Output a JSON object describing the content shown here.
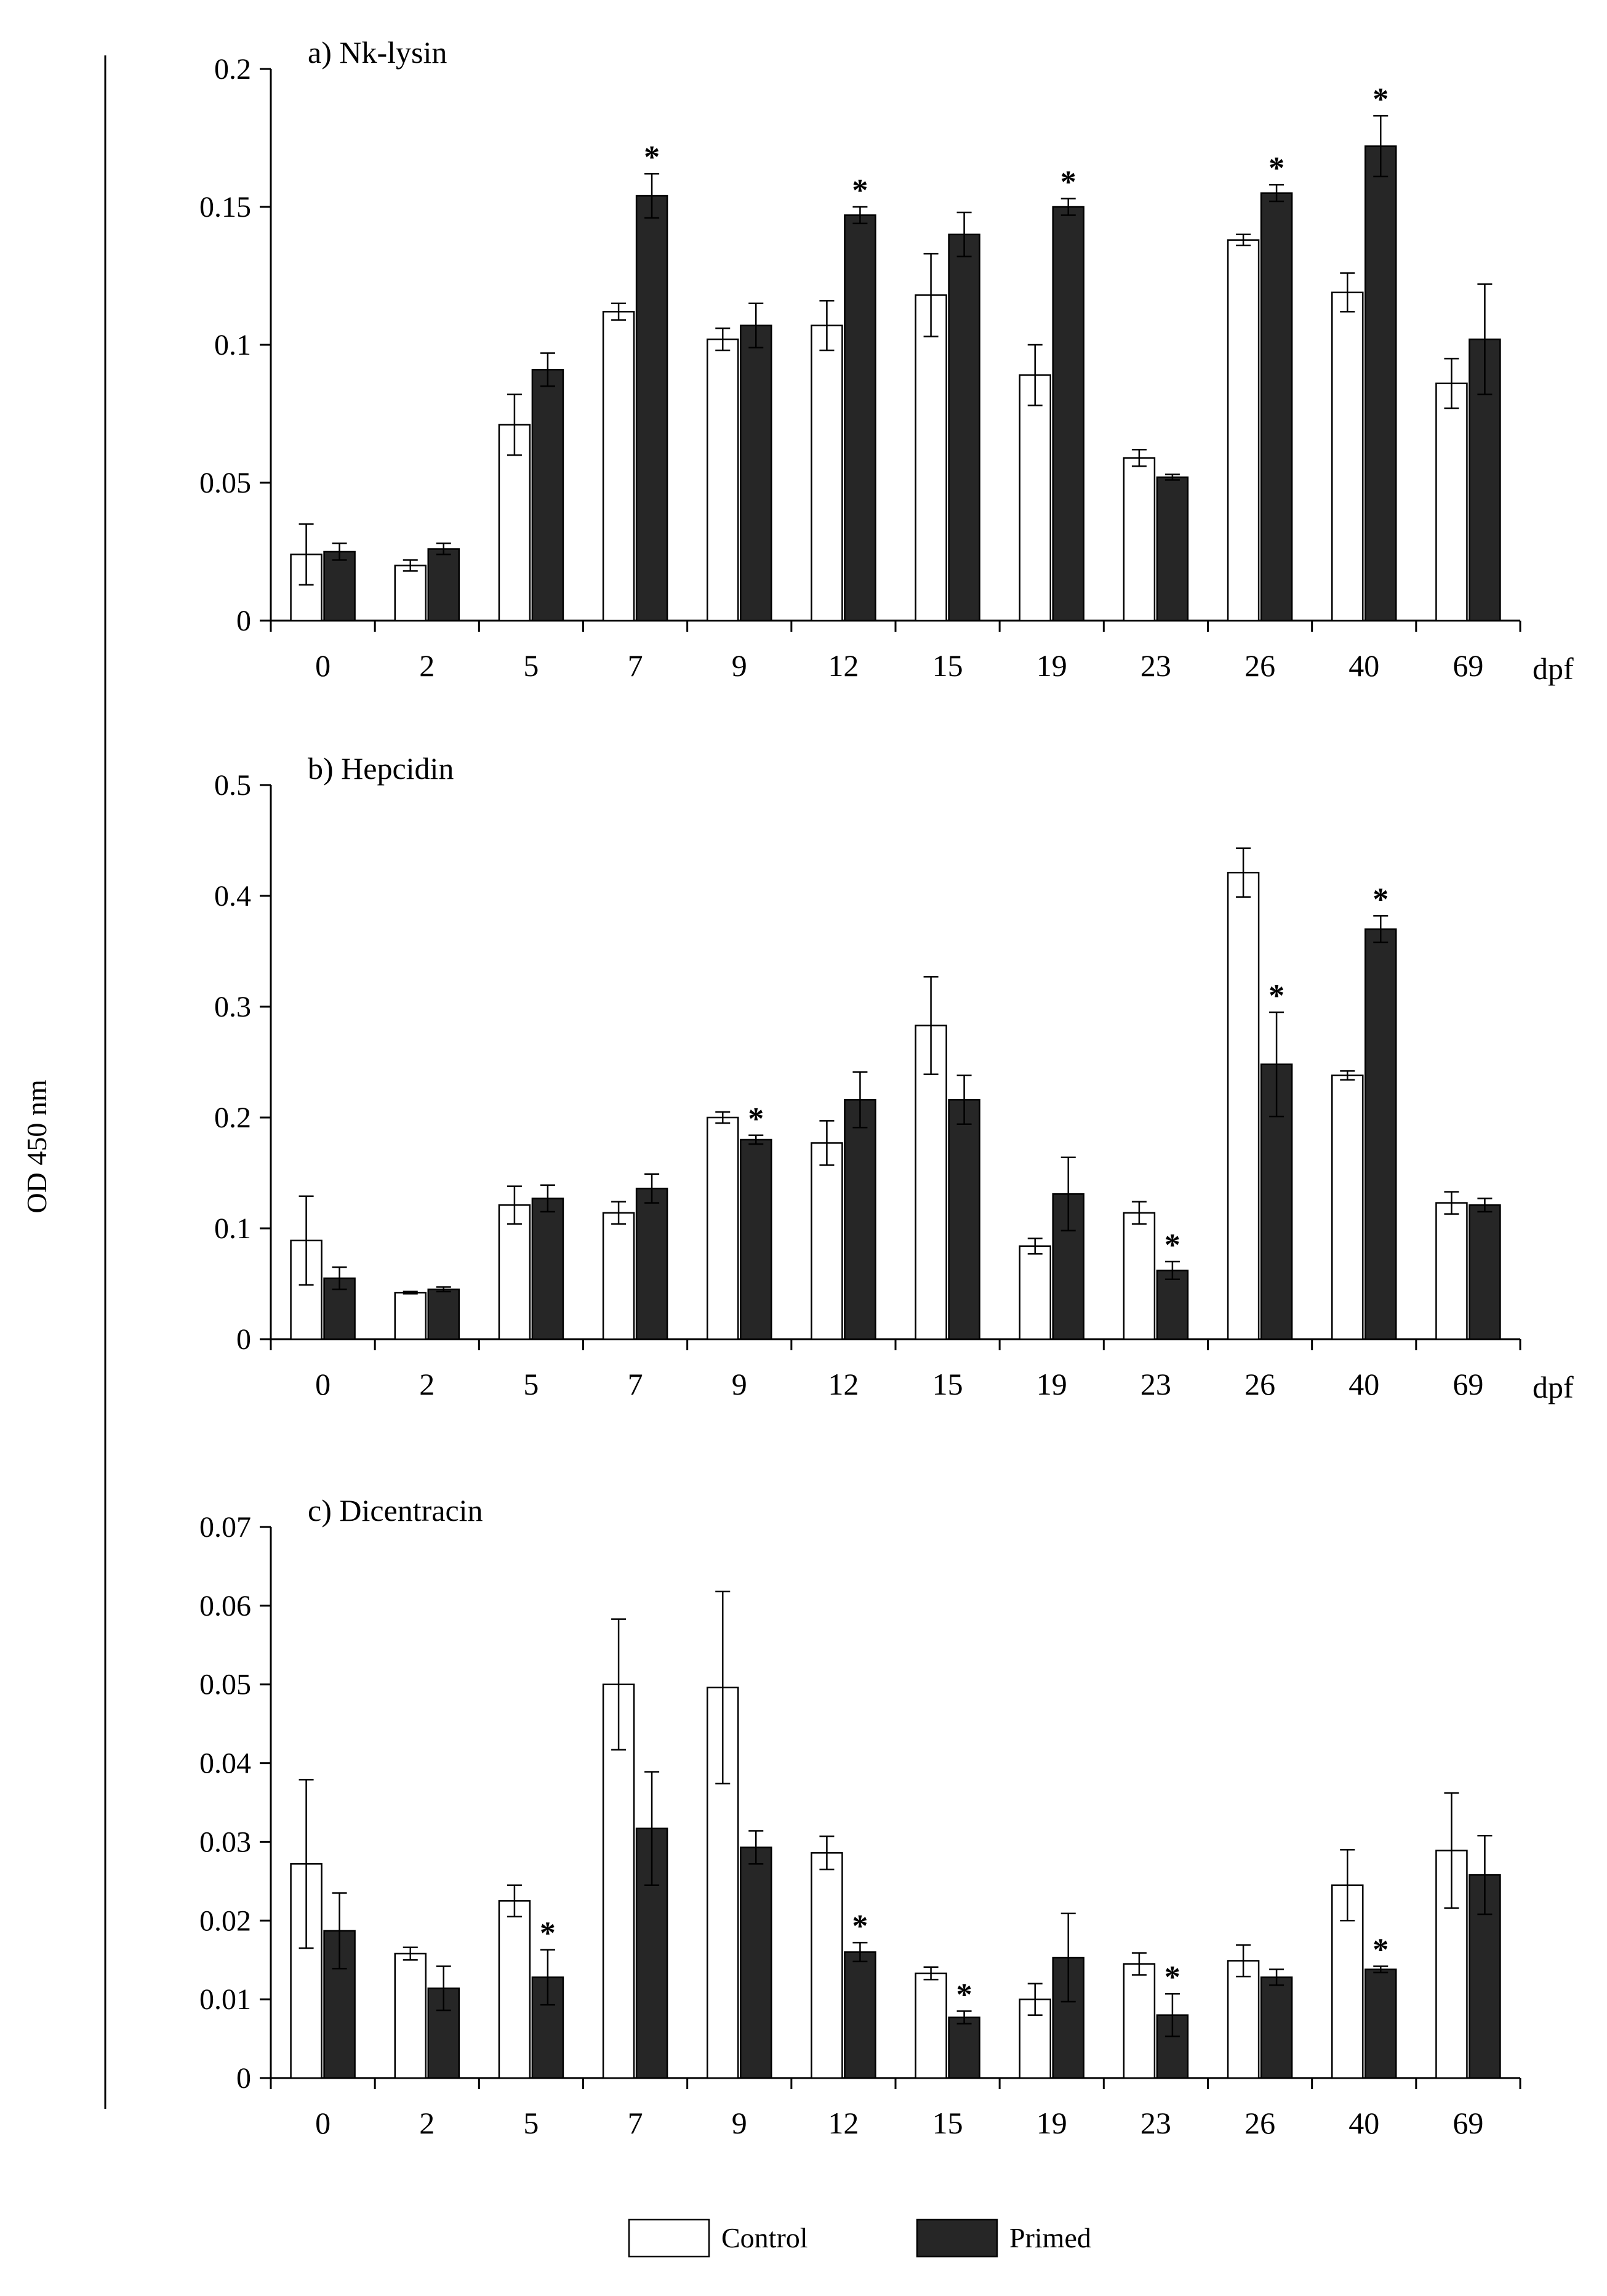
{
  "y_axis_label": "OD 450 nm",
  "x_unit_label": "dpf",
  "legend": {
    "control_label": "Control",
    "primed_label": "Primed"
  },
  "colors": {
    "control": "#ffffff",
    "primed": "#262626",
    "stroke": "#000000"
  },
  "significance_marker": "*",
  "chart_data": [
    {
      "type": "bar",
      "title": "a) Nk-lysin",
      "xlabel": "dpf",
      "ylabel": "OD 450 nm",
      "ylim": [
        0,
        0.2
      ],
      "yticks": [
        0,
        0.05,
        0.1,
        0.15,
        0.2
      ],
      "ytick_labels": [
        "0",
        "0.05",
        "0.1",
        "0.15",
        "0.2"
      ],
      "categories": [
        "0",
        "2",
        "5",
        "7",
        "9",
        "12",
        "15",
        "19",
        "23",
        "26",
        "40",
        "69"
      ],
      "series": [
        {
          "name": "Control",
          "values": [
            0.024,
            0.02,
            0.071,
            0.112,
            0.102,
            0.107,
            0.118,
            0.089,
            0.059,
            0.138,
            0.119,
            0.086
          ],
          "errors": [
            0.011,
            0.002,
            0.011,
            0.003,
            0.004,
            0.009,
            0.015,
            0.011,
            0.003,
            0.002,
            0.007,
            0.009
          ],
          "significant": [
            false,
            false,
            false,
            false,
            false,
            false,
            false,
            false,
            false,
            false,
            false,
            false
          ]
        },
        {
          "name": "Primed",
          "values": [
            0.025,
            0.026,
            0.091,
            0.154,
            0.107,
            0.147,
            0.14,
            0.15,
            0.052,
            0.155,
            0.172,
            0.102
          ],
          "errors": [
            0.003,
            0.002,
            0.006,
            0.008,
            0.008,
            0.003,
            0.008,
            0.003,
            0.001,
            0.003,
            0.011,
            0.02
          ],
          "significant": [
            false,
            false,
            false,
            true,
            false,
            true,
            false,
            true,
            false,
            true,
            true,
            false
          ]
        }
      ]
    },
    {
      "type": "bar",
      "title": "b) Hepcidin",
      "xlabel": "dpf",
      "ylabel": "OD 450 nm",
      "ylim": [
        0,
        0.5
      ],
      "yticks": [
        0,
        0.1,
        0.2,
        0.3,
        0.4,
        0.5
      ],
      "ytick_labels": [
        "0",
        "0.1",
        "0.2",
        "0.3",
        "0.4",
        "0.5"
      ],
      "categories": [
        "0",
        "2",
        "5",
        "7",
        "9",
        "12",
        "15",
        "19",
        "23",
        "26",
        "40",
        "69"
      ],
      "series": [
        {
          "name": "Control",
          "values": [
            0.089,
            0.042,
            0.121,
            0.114,
            0.2,
            0.177,
            0.283,
            0.084,
            0.114,
            0.421,
            0.238,
            0.123
          ],
          "errors": [
            0.04,
            0.001,
            0.017,
            0.01,
            0.005,
            0.02,
            0.044,
            0.007,
            0.01,
            0.022,
            0.004,
            0.01
          ],
          "significant": [
            false,
            false,
            false,
            false,
            false,
            false,
            false,
            false,
            false,
            false,
            false,
            false
          ]
        },
        {
          "name": "Primed",
          "values": [
            0.055,
            0.045,
            0.127,
            0.136,
            0.18,
            0.216,
            0.216,
            0.131,
            0.062,
            0.248,
            0.37,
            0.121
          ],
          "errors": [
            0.01,
            0.002,
            0.012,
            0.013,
            0.004,
            0.025,
            0.022,
            0.033,
            0.008,
            0.047,
            0.012,
            0.006
          ],
          "significant": [
            false,
            false,
            false,
            false,
            true,
            false,
            false,
            false,
            true,
            true,
            true,
            false
          ]
        }
      ]
    },
    {
      "type": "bar",
      "title": "c) Dicentracin",
      "xlabel": "",
      "ylabel": "OD 450 nm",
      "ylim": [
        0,
        0.07
      ],
      "yticks": [
        0,
        0.01,
        0.02,
        0.03,
        0.04,
        0.05,
        0.06,
        0.07
      ],
      "ytick_labels": [
        "0",
        "0.01",
        "0.02",
        "0.03",
        "0.04",
        "0.05",
        "0.06",
        "0.07"
      ],
      "categories": [
        "0",
        "2",
        "5",
        "7",
        "9",
        "12",
        "15",
        "19",
        "23",
        "26",
        "40",
        "69"
      ],
      "series": [
        {
          "name": "Control",
          "values": [
            0.0272,
            0.0158,
            0.0225,
            0.05,
            0.0496,
            0.0286,
            0.0133,
            0.01,
            0.0145,
            0.0149,
            0.0245,
            0.0289
          ],
          "errors": [
            0.0107,
            0.0008,
            0.002,
            0.0083,
            0.0122,
            0.0021,
            0.0008,
            0.002,
            0.0014,
            0.002,
            0.0045,
            0.0073
          ],
          "significant": [
            false,
            false,
            false,
            false,
            false,
            false,
            false,
            false,
            false,
            false,
            false,
            false
          ]
        },
        {
          "name": "Primed",
          "values": [
            0.0187,
            0.0114,
            0.0128,
            0.0317,
            0.0293,
            0.016,
            0.0077,
            0.0153,
            0.008,
            0.0128,
            0.0138,
            0.0258
          ],
          "errors": [
            0.0048,
            0.0028,
            0.0035,
            0.0072,
            0.0021,
            0.0012,
            0.0008,
            0.0056,
            0.0027,
            0.001,
            0.0004,
            0.005
          ],
          "significant": [
            false,
            false,
            true,
            false,
            false,
            true,
            true,
            false,
            true,
            false,
            true,
            false
          ]
        }
      ]
    }
  ]
}
